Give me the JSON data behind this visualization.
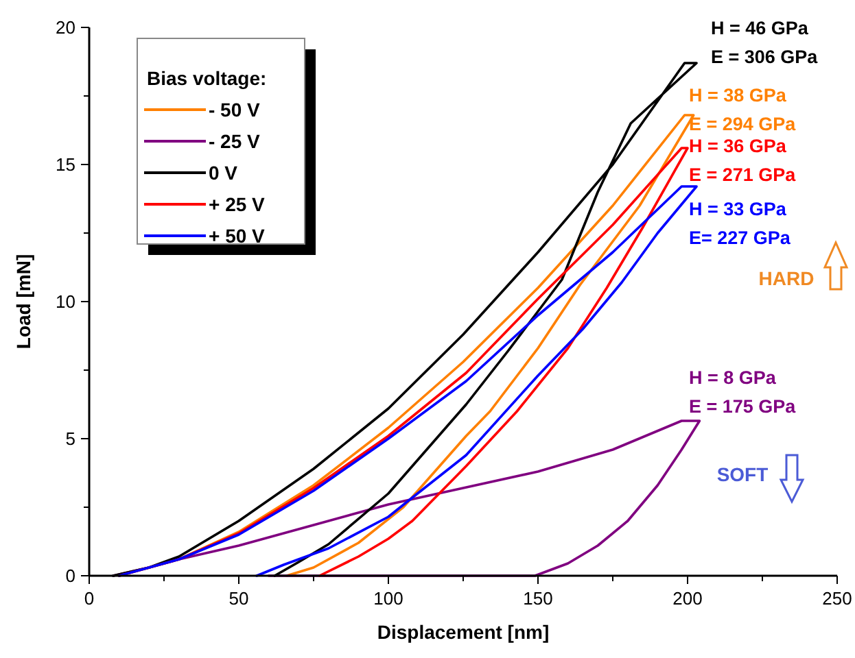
{
  "chart_data": {
    "type": "line",
    "xlabel": "Displacement [nm]",
    "ylabel": "Load [mN]",
    "legend_title": "Bias voltage:",
    "legend": "top left",
    "grid": false,
    "marker": "none",
    "line_style": "solid",
    "xlim": [
      0,
      250
    ],
    "ylim": [
      0,
      20
    ],
    "xticks": [
      0,
      {
        "value": 25,
        "label": null
      },
      50,
      {
        "value": 75,
        "label": null
      },
      100,
      {
        "value": 125,
        "label": null
      },
      150,
      {
        "value": 175,
        "label": null
      },
      200,
      {
        "value": 225,
        "label": null
      },
      250
    ],
    "yticks": [
      0,
      {
        "value": 2.5,
        "label": null
      },
      5,
      {
        "value": 7.5,
        "label": null
      },
      10,
      {
        "value": 12.5,
        "label": null
      },
      15,
      {
        "value": 17.5,
        "label": null
      },
      20
    ],
    "series": [
      {
        "name": "- 50 V",
        "color": "#ff8000",
        "x": [
          10,
          30,
          50,
          75,
          100,
          125,
          150,
          175,
          199,
          202,
          184,
          164,
          150,
          134,
          126,
          105,
          90,
          75,
          66
        ],
        "values": [
          0,
          0.6,
          1.6,
          3.3,
          5.4,
          7.8,
          10.5,
          13.5,
          16.8,
          16.8,
          13.5,
          10.6,
          8.3,
          6,
          5.1,
          2.5,
          1.2,
          0.3,
          0
        ]
      },
      {
        "name": "- 25 V",
        "color": "#800080",
        "x": [
          8,
          20,
          30,
          50,
          75,
          100,
          125,
          150,
          175,
          198,
          204,
          198,
          190,
          180,
          170,
          160,
          149,
          100,
          60
        ],
        "values": [
          0,
          0.3,
          0.6,
          1.1,
          1.85,
          2.6,
          3.2,
          3.8,
          4.6,
          5.65,
          5.65,
          4.6,
          3.3,
          2,
          1.1,
          0.45,
          0,
          0,
          0
        ]
      },
      {
        "name": "0 V",
        "color": "#000000",
        "x": [
          8,
          20,
          30,
          50,
          75,
          100,
          125,
          150,
          175,
          199,
          203,
          181,
          170,
          158,
          140,
          126,
          108,
          100,
          80,
          70,
          62
        ],
        "values": [
          0,
          0.3,
          0.7,
          2,
          3.9,
          6.1,
          8.8,
          11.8,
          15,
          18.7,
          18.7,
          16.5,
          14,
          10.8,
          8.2,
          6.25,
          4,
          3,
          1.15,
          0.5,
          0
        ]
      },
      {
        "name": "+ 25 V",
        "color": "#ff0000",
        "x": [
          10,
          30,
          50,
          75,
          100,
          126,
          150,
          175,
          198,
          200,
          185,
          173,
          160,
          143,
          126,
          108,
          100,
          90,
          77
        ],
        "values": [
          0,
          0.6,
          1.55,
          3.2,
          5.1,
          7.4,
          10.1,
          12.8,
          15.6,
          15.6,
          12.7,
          10.5,
          8.3,
          6,
          4,
          2,
          1.35,
          0.7,
          0
        ]
      },
      {
        "name": "+ 50 V",
        "color": "#0000ff",
        "x": [
          10,
          30,
          50,
          75,
          100,
          126,
          150,
          175,
          198,
          203,
          190,
          178,
          165,
          150,
          126,
          108,
          100,
          80,
          65,
          56
        ],
        "values": [
          0,
          0.6,
          1.5,
          3.1,
          5,
          7.1,
          9.5,
          11.8,
          14.2,
          14.2,
          12.5,
          10.7,
          9,
          7.3,
          4.4,
          2.85,
          2.15,
          1,
          0.4,
          0
        ]
      }
    ],
    "annotations": [
      "H = 38 GPa",
      "E = 294 GPa",
      "H = 8 GPa",
      "E = 175 GPa",
      "H = 46 GPa",
      "E = 306 GPa",
      "H = 36 GPa",
      "E = 271 GPa",
      "H = 33 GPa",
      "E= 227 GPa",
      "HARD",
      "SOFT"
    ]
  }
}
